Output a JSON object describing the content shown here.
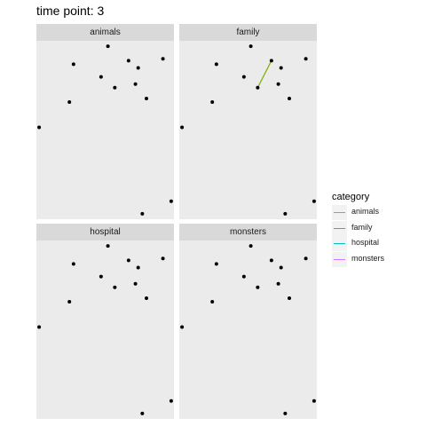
{
  "title": "time point: 3",
  "chart_data": {
    "type": "scatter",
    "facets": [
      "animals",
      "family",
      "hospital",
      "monsters"
    ],
    "points": [
      {
        "x": 0.6,
        "y": 0.98
      },
      {
        "x": 0.35,
        "y": 0.88
      },
      {
        "x": 0.75,
        "y": 0.9
      },
      {
        "x": 1.0,
        "y": 0.91
      },
      {
        "x": 0.82,
        "y": 0.86
      },
      {
        "x": 0.55,
        "y": 0.81
      },
      {
        "x": 0.65,
        "y": 0.75
      },
      {
        "x": 0.8,
        "y": 0.77
      },
      {
        "x": 0.88,
        "y": 0.69
      },
      {
        "x": 0.32,
        "y": 0.67
      },
      {
        "x": 0.1,
        "y": 0.53
      },
      {
        "x": 1.06,
        "y": 0.12
      },
      {
        "x": 0.85,
        "y": 0.05
      }
    ],
    "segments": [
      {
        "facet": "family",
        "category": "family",
        "from": {
          "x": 0.65,
          "y": 0.75
        },
        "to": {
          "x": 0.75,
          "y": 0.9
        }
      }
    ],
    "xlim": [
      0.08,
      1.08
    ],
    "ylim": [
      0.02,
      1.01
    ],
    "grid": false,
    "legend": {
      "title": "category",
      "position": "right",
      "items": [
        {
          "label": "animals",
          "color": "#F8766D"
        },
        {
          "label": "family",
          "color": "#7CAE00"
        },
        {
          "label": "hospital",
          "color": "#00BFC4"
        },
        {
          "label": "monsters",
          "color": "#C77CFF"
        }
      ]
    },
    "panel_background": "#ebebeb",
    "strip_background": "#d9d9d9",
    "point_color": "#000000"
  }
}
